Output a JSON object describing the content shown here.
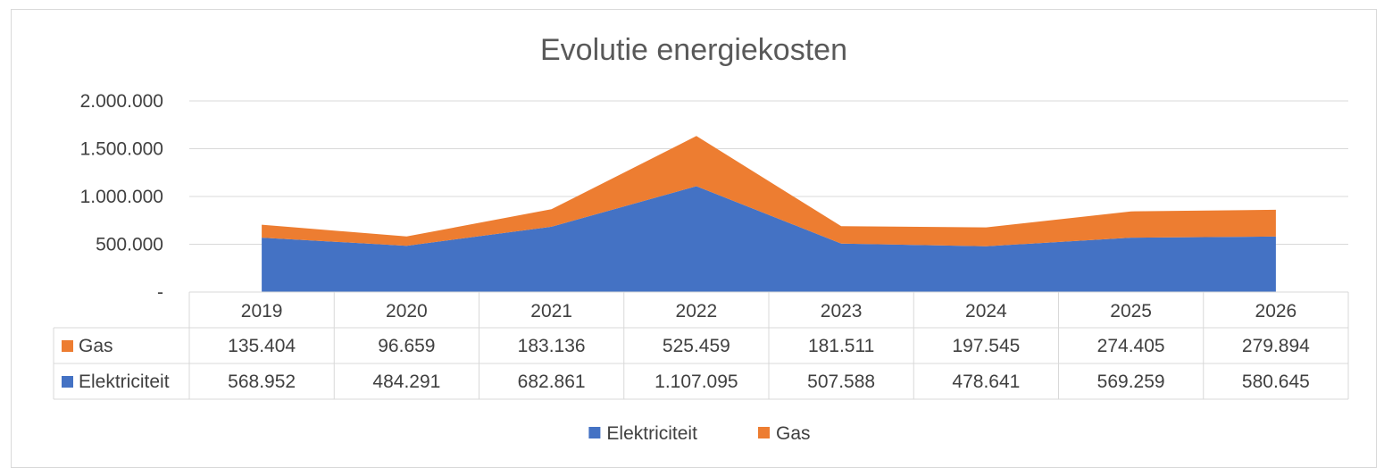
{
  "chart_data": {
    "type": "area",
    "stacked": true,
    "title": "Evolutie energiekosten",
    "categories": [
      "2019",
      "2020",
      "2021",
      "2022",
      "2023",
      "2024",
      "2025",
      "2026"
    ],
    "series": [
      {
        "name": "Elektriciteit",
        "color": "#4472C4",
        "values": [
          568952,
          484291,
          682861,
          1107095,
          507588,
          478641,
          569259,
          580645
        ],
        "labels": [
          "568.952",
          "484.291",
          "682.861",
          "1.107.095",
          "507.588",
          "478.641",
          "569.259",
          "580.645"
        ]
      },
      {
        "name": "Gas",
        "color": "#ED7D31",
        "values": [
          135404,
          96659,
          183136,
          525459,
          181511,
          197545,
          274405,
          279894
        ],
        "labels": [
          "135.404",
          "96.659",
          "183.136",
          "525.459",
          "181.511",
          "197.545",
          "274.405",
          "279.894"
        ]
      }
    ],
    "y_ticks": [
      {
        "value": 0,
        "label": "-"
      },
      {
        "value": 500000,
        "label": "500.000"
      },
      {
        "value": 1000000,
        "label": "1.000.000"
      },
      {
        "value": 1500000,
        "label": "1.500.000"
      },
      {
        "value": 2000000,
        "label": "2.000.000"
      }
    ],
    "ylim": [
      0,
      2000000
    ],
    "grid": true,
    "data_table": true,
    "data_table_row_order": [
      "Gas",
      "Elektriciteit"
    ],
    "legend": {
      "position": "bottom",
      "order": [
        "Elektriciteit",
        "Gas"
      ]
    }
  }
}
